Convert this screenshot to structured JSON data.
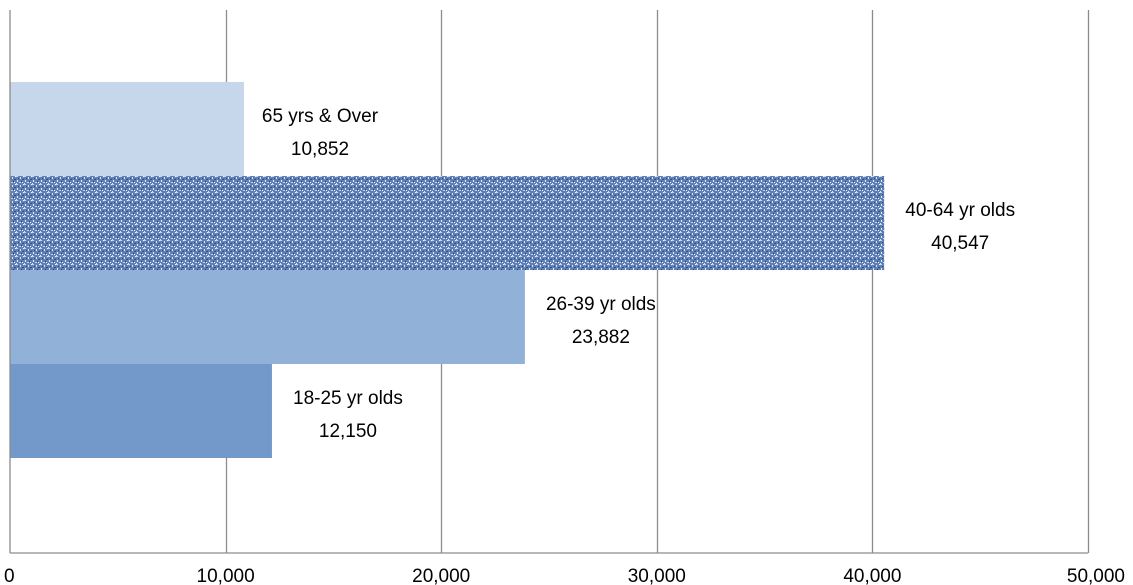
{
  "chart_data": {
    "type": "bar",
    "orientation": "horizontal",
    "categories": [
      "65 yrs & Over",
      "40-64 yr olds",
      "26-39 yr olds",
      "18-25 yr olds"
    ],
    "values": [
      10852,
      40547,
      23882,
      12150
    ],
    "value_labels": [
      "10,852",
      "40,547",
      "23,882",
      "12,150"
    ],
    "xlim": [
      0,
      50000
    ],
    "xticks": [
      0,
      10000,
      20000,
      30000,
      40000,
      50000
    ],
    "xtick_labels": [
      "0",
      "10,000",
      "20,000",
      "30,000",
      "40,000",
      "50,000"
    ],
    "grid": "vertical",
    "bar_colors": [
      "#c6d6eb",
      "#4a6fa8",
      "#92b1d8",
      "#7399cb"
    ],
    "bar_patterns": [
      "solid",
      "textured",
      "solid",
      "solid"
    ],
    "title": "",
    "xlabel": "",
    "ylabel": ""
  }
}
